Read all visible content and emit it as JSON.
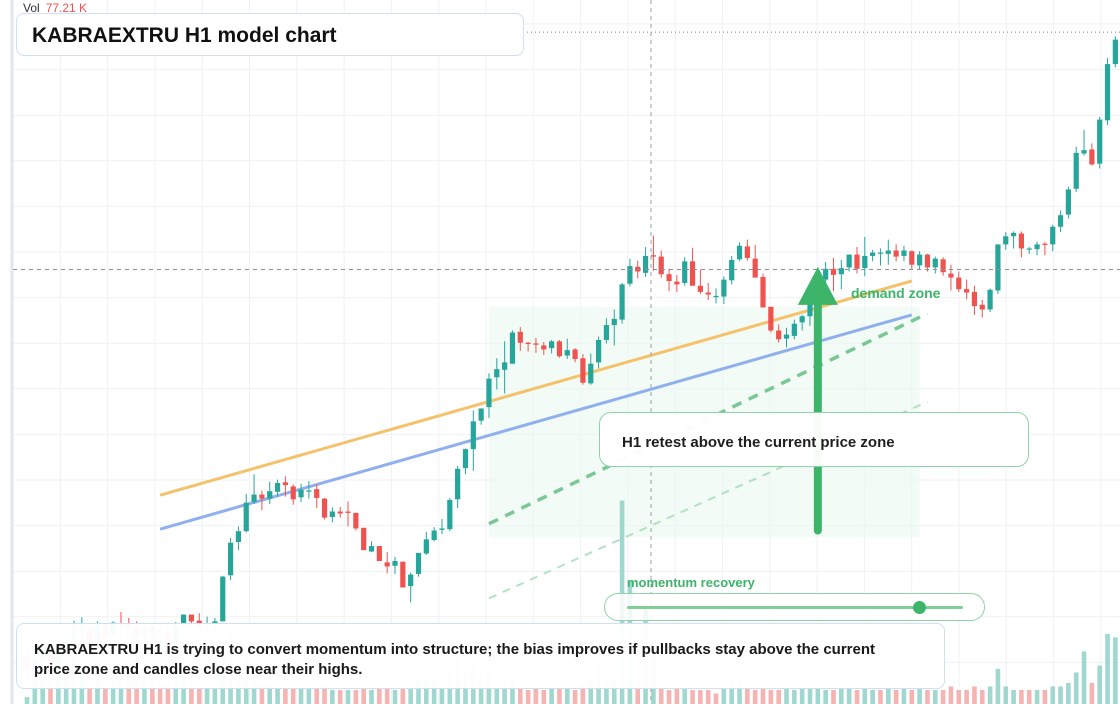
{
  "header": {
    "vol_label": "Vol",
    "vol_value": "77.21 K",
    "title": "KABRAEXTRU H1 model chart"
  },
  "annotations": {
    "note": "H1 retest above the current price zone",
    "zone_label": "demand zone",
    "momentum_label": "momentum recovery",
    "momentum_level": 0.87,
    "summary": "KABRAEXTRU H1 is trying to convert momentum into structure; the bias improves if pullbacks stay above the current price zone and candles close near their highs."
  },
  "colors": {
    "up": "#26a69a",
    "down": "#ef5350",
    "accent_green": "#3cb56a",
    "trend_orange": "#f4c26b",
    "trend_blue": "#8fb0ec"
  },
  "chart_data": {
    "type": "candlestick",
    "title": "KABRAEXTRU H1 model chart",
    "ylim": [
      0,
      100
    ],
    "grid": true,
    "reference_levels": {
      "current_price_zone": 63.5,
      "last_high": 98.5
    },
    "demand_zone": {
      "x_from": 59,
      "x_to": 114,
      "y_low": 24,
      "y_high": 58
    },
    "trendlines": [
      {
        "name": "upper",
        "from": [
          17,
          30.2
        ],
        "to": [
          113,
          61.8
        ]
      },
      {
        "name": "lower",
        "from": [
          17,
          25.2
        ],
        "to": [
          113,
          56.8
        ]
      },
      {
        "name": "projection-near",
        "from": [
          59,
          26
        ],
        "to": [
          115,
          57
        ]
      },
      {
        "name": "projection-far",
        "from": [
          59,
          15
        ],
        "to": [
          115,
          44
        ]
      }
    ],
    "arrow": {
      "x": 101,
      "from": 25,
      "to": 63
    },
    "ohlc": [
      [
        6.5,
        7.8,
        2.2,
        4.4
      ],
      [
        4.2,
        7.8,
        3.5,
        5.8
      ],
      [
        5.9,
        9.2,
        5.1,
        7.3
      ],
      [
        7.1,
        8.0,
        4.3,
        5.1
      ],
      [
        5.3,
        8.5,
        4.4,
        7.6
      ],
      [
        7.4,
        9.2,
        6.1,
        8.5
      ],
      [
        8.3,
        11.7,
        7.8,
        10.2
      ],
      [
        10.1,
        12.2,
        9.1,
        10.4
      ],
      [
        10.4,
        10.4,
        7.9,
        8.9
      ],
      [
        9.0,
        11.6,
        8.1,
        11.0
      ],
      [
        11.0,
        11.1,
        8.8,
        9.6
      ],
      [
        9.6,
        11.6,
        9.0,
        11.4
      ],
      [
        11.3,
        13.0,
        10.5,
        11.0
      ],
      [
        11.1,
        12.1,
        10.2,
        10.5
      ],
      [
        10.6,
        11.6,
        7.8,
        9.5
      ],
      [
        9.6,
        11.3,
        8.8,
        10.7
      ],
      [
        10.9,
        11.2,
        8.9,
        10.1
      ],
      [
        10.3,
        11.0,
        8.2,
        9.9
      ],
      [
        9.9,
        10.9,
        6.8,
        8.1
      ],
      [
        8.1,
        11.5,
        7.4,
        11.3
      ],
      [
        11.3,
        12.6,
        10.9,
        12.6
      ],
      [
        12.6,
        12.6,
        10.6,
        11.6
      ],
      [
        11.7,
        12.8,
        10.5,
        11.0
      ],
      [
        11.0,
        12.3,
        10.2,
        11.1
      ],
      [
        11.1,
        12.1,
        9.3,
        11.6
      ],
      [
        11.6,
        18.3,
        11.6,
        18.2
      ],
      [
        18.4,
        23.9,
        17.7,
        23.2
      ],
      [
        23.3,
        25.6,
        22.1,
        24.9
      ],
      [
        24.9,
        30.4,
        24.7,
        29.1
      ],
      [
        29.2,
        33.3,
        28.9,
        30.3
      ],
      [
        30.3,
        30.9,
        28.0,
        29.7
      ],
      [
        29.7,
        32.2,
        28.9,
        30.8
      ],
      [
        30.7,
        32.5,
        30.0,
        32.0
      ],
      [
        32.1,
        33.0,
        30.0,
        31.7
      ],
      [
        31.5,
        31.8,
        28.8,
        29.6
      ],
      [
        29.9,
        31.9,
        29.2,
        31.0
      ],
      [
        30.9,
        32.3,
        29.7,
        30.9
      ],
      [
        31.1,
        31.8,
        28.3,
        29.8
      ],
      [
        29.7,
        29.8,
        26.6,
        26.9
      ],
      [
        27.0,
        28.4,
        26.2,
        27.8
      ],
      [
        27.8,
        28.5,
        26.9,
        27.5
      ],
      [
        27.8,
        29.3,
        25.6,
        27.6
      ],
      [
        27.6,
        27.6,
        25.0,
        25.3
      ],
      [
        25.4,
        25.4,
        22.1,
        22.1
      ],
      [
        21.9,
        23.4,
        21.8,
        22.7
      ],
      [
        22.7,
        22.7,
        20.5,
        20.5
      ],
      [
        20.3,
        21.8,
        18.7,
        19.7
      ],
      [
        19.8,
        21.1,
        18.6,
        20.5
      ],
      [
        20.4,
        20.4,
        16.6,
        16.6
      ],
      [
        16.8,
        18.8,
        14.4,
        18.5
      ],
      [
        18.6,
        21.7,
        18.2,
        21.7
      ],
      [
        21.6,
        24.8,
        21.4,
        23.7
      ],
      [
        23.6,
        25.5,
        23.4,
        25.0
      ],
      [
        25.1,
        26.7,
        24.5,
        25.3
      ],
      [
        25.2,
        29.8,
        24.9,
        29.5
      ],
      [
        29.6,
        34.5,
        28.3,
        34.1
      ],
      [
        34.2,
        37.1,
        33.3,
        37.0
      ],
      [
        37.0,
        42.7,
        33.8,
        41.1
      ],
      [
        41.2,
        43.0,
        40.6,
        43.0
      ],
      [
        43.2,
        48.2,
        41.6,
        47.4
      ],
      [
        47.6,
        50.4,
        45.8,
        48.8
      ],
      [
        48.7,
        52.9,
        45.2,
        49.8
      ],
      [
        49.6,
        54.5,
        49.6,
        54.2
      ],
      [
        54.3,
        55.0,
        51.5,
        52.7
      ],
      [
        52.7,
        52.8,
        51.4,
        52.5
      ],
      [
        52.6,
        53.4,
        51.2,
        52.4
      ],
      [
        52.3,
        52.8,
        50.9,
        51.7
      ],
      [
        51.9,
        53.1,
        51.1,
        52.9
      ],
      [
        52.9,
        53.1,
        50.5,
        50.7
      ],
      [
        50.8,
        53.3,
        50.3,
        51.6
      ],
      [
        51.7,
        51.9,
        49.8,
        50.3
      ],
      [
        50.4,
        51.0,
        46.5,
        46.8
      ],
      [
        46.7,
        51.1,
        46.5,
        49.6
      ],
      [
        49.8,
        53.6,
        48.9,
        53.1
      ],
      [
        53.1,
        56.3,
        52.6,
        55.3
      ],
      [
        55.3,
        57.6,
        52.3,
        56.2
      ],
      [
        56.1,
        61.5,
        55.5,
        61.3
      ],
      [
        61.4,
        65.1,
        61.0,
        64.0
      ],
      [
        63.9,
        64.8,
        62.2,
        63.2
      ],
      [
        63.0,
        66.8,
        62.4,
        65.5
      ],
      [
        65.6,
        68.5,
        63.3,
        65.4
      ],
      [
        65.4,
        66.3,
        62.3,
        62.8
      ],
      [
        62.8,
        63.6,
        60.3,
        61.8
      ],
      [
        61.7,
        62.7,
        60.2,
        61.3
      ],
      [
        61.5,
        65.3,
        61.1,
        64.7
      ],
      [
        64.7,
        66.7,
        61.3,
        61.1
      ],
      [
        61.1,
        63.5,
        59.9,
        60.2
      ],
      [
        60.1,
        61.5,
        59.0,
        59.8
      ],
      [
        59.6,
        60.7,
        58.5,
        59.6
      ],
      [
        59.5,
        62.5,
        58.4,
        62.0
      ],
      [
        61.9,
        65.5,
        61.3,
        64.9
      ],
      [
        65.0,
        67.5,
        64.7,
        67.0
      ],
      [
        66.9,
        67.9,
        64.8,
        65.2
      ],
      [
        65.1,
        67.1,
        62.5,
        62.3
      ],
      [
        62.4,
        62.9,
        58.1,
        57.9
      ],
      [
        58.0,
        57.9,
        54.2,
        54.5
      ],
      [
        54.5,
        55.4,
        52.7,
        53.2
      ],
      [
        53.3,
        54.9,
        52.0,
        53.9
      ],
      [
        53.7,
        56.1,
        53.2,
        55.5
      ],
      [
        55.7,
        56.8,
        54.5,
        56.6
      ],
      [
        56.6,
        59.2,
        55.2,
        59.0
      ],
      [
        59.0,
        61.9,
        57.6,
        61.9
      ],
      [
        62.0,
        64.6,
        61.1,
        63.6
      ],
      [
        63.6,
        65.2,
        60.3,
        62.7
      ],
      [
        62.8,
        64.9,
        60.6,
        63.7
      ],
      [
        63.8,
        65.5,
        63.2,
        65.7
      ],
      [
        65.7,
        66.8,
        62.9,
        63.6
      ],
      [
        63.7,
        68.3,
        62.5,
        65.5
      ],
      [
        65.5,
        66.4,
        64.7,
        66.0
      ],
      [
        66.0,
        66.6,
        64.1,
        66.0
      ],
      [
        65.8,
        67.9,
        64.2,
        66.3
      ],
      [
        66.3,
        67.2,
        64.7,
        65.4
      ],
      [
        65.5,
        67.0,
        64.7,
        66.3
      ],
      [
        66.2,
        66.3,
        63.5,
        64.2
      ],
      [
        64.1,
        66.2,
        63.5,
        65.7
      ],
      [
        65.7,
        65.8,
        63.2,
        63.8
      ],
      [
        63.8,
        65.4,
        62.9,
        65.1
      ],
      [
        65.0,
        65.3,
        62.6,
        63.1
      ],
      [
        62.9,
        64.2,
        60.4,
        62.3
      ],
      [
        62.3,
        63.2,
        60.2,
        60.6
      ],
      [
        60.6,
        62.0,
        59.1,
        60.1
      ],
      [
        60.2,
        61.1,
        56.8,
        58.1
      ],
      [
        58.3,
        59.0,
        56.4,
        57.6
      ],
      [
        57.6,
        60.7,
        57.2,
        60.5
      ],
      [
        60.4,
        67.1,
        59.9,
        67.2
      ],
      [
        67.2,
        69.0,
        66.4,
        68.4
      ],
      [
        68.4,
        69.1,
        66.6,
        68.9
      ],
      [
        68.8,
        69.1,
        65.3,
        66.6
      ],
      [
        66.6,
        66.8,
        65.8,
        66.6
      ],
      [
        66.5,
        67.6,
        65.6,
        67.2
      ],
      [
        67.3,
        67.6,
        65.6,
        67.2
      ],
      [
        67.2,
        70.1,
        66.2,
        69.8
      ],
      [
        69.8,
        72.2,
        69.0,
        71.5
      ],
      [
        71.6,
        75.7,
        71.0,
        75.3
      ],
      [
        75.4,
        81.6,
        74.9,
        80.7
      ],
      [
        80.6,
        84.1,
        80.3,
        81.1
      ],
      [
        81.2,
        82.1,
        78.8,
        79.0
      ],
      [
        79.1,
        86.0,
        78.4,
        85.6
      ],
      [
        85.5,
        94.7,
        84.8,
        93.8
      ],
      [
        93.8,
        97.9,
        93.3,
        97.4
      ],
      [
        97.5,
        98.8,
        97.0,
        98.2
      ]
    ],
    "volume": [
      [
        0.02,
        1
      ],
      [
        0.12,
        1
      ],
      [
        0.09,
        1
      ],
      [
        0.08,
        0
      ],
      [
        0.15,
        1
      ],
      [
        0.1,
        1
      ],
      [
        0.13,
        1
      ],
      [
        0.11,
        1
      ],
      [
        0.09,
        0
      ],
      [
        0.12,
        1
      ],
      [
        0.08,
        0
      ],
      [
        0.1,
        1
      ],
      [
        0.11,
        1
      ],
      [
        0.09,
        0
      ],
      [
        0.08,
        0
      ],
      [
        0.07,
        1
      ],
      [
        0.08,
        0
      ],
      [
        0.06,
        0
      ],
      [
        0.06,
        0
      ],
      [
        0.1,
        1
      ],
      [
        0.09,
        1
      ],
      [
        0.06,
        0
      ],
      [
        0.07,
        0
      ],
      [
        0.06,
        1
      ],
      [
        0.05,
        1
      ],
      [
        0.14,
        1
      ],
      [
        0.22,
        1
      ],
      [
        0.11,
        1
      ],
      [
        0.16,
        1
      ],
      [
        0.12,
        1
      ],
      [
        0.05,
        0
      ],
      [
        0.06,
        1
      ],
      [
        0.05,
        1
      ],
      [
        0.05,
        0
      ],
      [
        0.05,
        0
      ],
      [
        0.05,
        1
      ],
      [
        0.05,
        1
      ],
      [
        0.05,
        0
      ],
      [
        0.06,
        0
      ],
      [
        0.04,
        1
      ],
      [
        0.04,
        0
      ],
      [
        0.04,
        1
      ],
      [
        0.04,
        0
      ],
      [
        0.05,
        0
      ],
      [
        0.04,
        1
      ],
      [
        0.05,
        0
      ],
      [
        0.05,
        0
      ],
      [
        0.04,
        1
      ],
      [
        0.06,
        0
      ],
      [
        0.05,
        1
      ],
      [
        0.07,
        1
      ],
      [
        0.08,
        1
      ],
      [
        0.07,
        1
      ],
      [
        0.06,
        1
      ],
      [
        0.09,
        1
      ],
      [
        0.13,
        1
      ],
      [
        0.1,
        1
      ],
      [
        0.11,
        1
      ],
      [
        0.08,
        1
      ],
      [
        0.1,
        1
      ],
      [
        0.05,
        1
      ],
      [
        0.06,
        1
      ],
      [
        0.07,
        1
      ],
      [
        0.05,
        0
      ],
      [
        0.04,
        0
      ],
      [
        0.05,
        0
      ],
      [
        0.04,
        0
      ],
      [
        0.05,
        1
      ],
      [
        0.05,
        0
      ],
      [
        0.05,
        1
      ],
      [
        0.04,
        0
      ],
      [
        0.06,
        0
      ],
      [
        0.07,
        1
      ],
      [
        0.12,
        1
      ],
      [
        0.08,
        1
      ],
      [
        0.07,
        1
      ],
      [
        0.58,
        1
      ],
      [
        0.35,
        1
      ],
      [
        0.19,
        0
      ],
      [
        0.28,
        1
      ],
      [
        0.19,
        1
      ],
      [
        0.06,
        0
      ],
      [
        0.04,
        0
      ],
      [
        0.05,
        0
      ],
      [
        0.05,
        1
      ],
      [
        0.04,
        0
      ],
      [
        0.04,
        0
      ],
      [
        0.04,
        0
      ],
      [
        0.03,
        0
      ],
      [
        0.05,
        1
      ],
      [
        0.06,
        1
      ],
      [
        0.06,
        1
      ],
      [
        0.05,
        0
      ],
      [
        0.04,
        0
      ],
      [
        0.05,
        0
      ],
      [
        0.04,
        0
      ],
      [
        0.04,
        0
      ],
      [
        0.05,
        1
      ],
      [
        0.04,
        1
      ],
      [
        0.05,
        1
      ],
      [
        0.05,
        1
      ],
      [
        0.05,
        1
      ],
      [
        0.04,
        1
      ],
      [
        0.04,
        0
      ],
      [
        0.05,
        1
      ],
      [
        0.05,
        1
      ],
      [
        0.04,
        0
      ],
      [
        0.06,
        1
      ],
      [
        0.04,
        1
      ],
      [
        0.04,
        0
      ],
      [
        0.05,
        1
      ],
      [
        0.04,
        0
      ],
      [
        0.05,
        1
      ],
      [
        0.04,
        0
      ],
      [
        0.05,
        1
      ],
      [
        0.04,
        0
      ],
      [
        0.04,
        1
      ],
      [
        0.04,
        0
      ],
      [
        0.05,
        0
      ],
      [
        0.04,
        0
      ],
      [
        0.04,
        0
      ],
      [
        0.05,
        0
      ],
      [
        0.04,
        0
      ],
      [
        0.05,
        1
      ],
      [
        0.1,
        1
      ],
      [
        0.05,
        1
      ],
      [
        0.04,
        1
      ],
      [
        0.04,
        0
      ],
      [
        0.04,
        0
      ],
      [
        0.04,
        1
      ],
      [
        0.04,
        0
      ],
      [
        0.05,
        1
      ],
      [
        0.05,
        1
      ],
      [
        0.06,
        1
      ],
      [
        0.09,
        1
      ],
      [
        0.15,
        1
      ],
      [
        0.06,
        0
      ],
      [
        0.11,
        1
      ],
      [
        0.2,
        1
      ],
      [
        0.19,
        1
      ],
      [
        0.18,
        1
      ]
    ]
  }
}
